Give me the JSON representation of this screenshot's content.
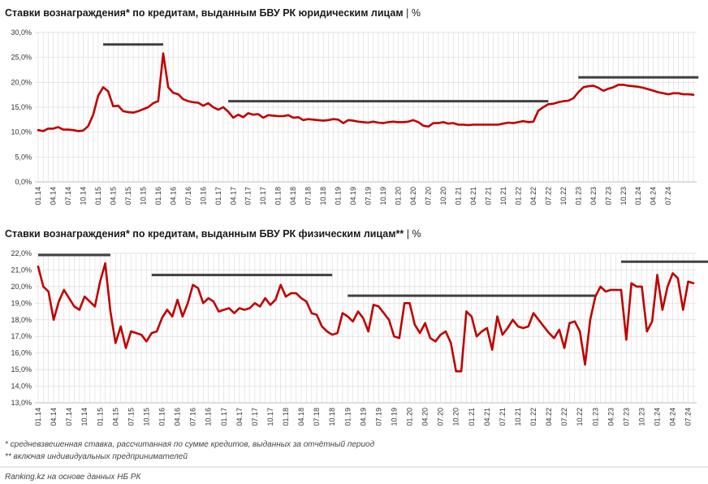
{
  "colors": {
    "series": "#c00000",
    "trend": "#404040",
    "grid": "#d9d9d9",
    "axis": "#bfbfbf"
  },
  "x_labels": [
    "01.14",
    "04.14",
    "07.14",
    "10.14",
    "01.15",
    "04.15",
    "07.15",
    "10.15",
    "01.16",
    "04.16",
    "07.16",
    "10.16",
    "01.17",
    "04.17",
    "07.17",
    "10.17",
    "01.18",
    "04.18",
    "07.18",
    "10.18",
    "01.19",
    "04.19",
    "07.19",
    "10.19",
    "01.20",
    "04.20",
    "07.20",
    "10.20",
    "01.21",
    "04.21",
    "07.21",
    "10.21",
    "01.22",
    "04.22",
    "07.22",
    "10.22",
    "01.23",
    "04.23",
    "07.23",
    "10.23",
    "01.24",
    "04.24",
    "07.24"
  ],
  "chart_data": [
    {
      "type": "line",
      "title": "Ставки вознаграждения* по кредитам, выданным БВУ РК юридическим лицам",
      "unit": "%",
      "title_sep": "|",
      "ylim": [
        0,
        30
      ],
      "y_ticks": [
        "0,0%",
        "5,0%",
        "10,0%",
        "15,0%",
        "20,0%",
        "25,0%",
        "30,0%"
      ],
      "series": [
        {
          "name": "Юридические лица",
          "values": [
            10.4,
            10.2,
            10.7,
            10.7,
            11,
            10.5,
            10.5,
            10.4,
            10.2,
            10.3,
            11.2,
            13.5,
            17.3,
            19,
            18.2,
            15.2,
            15.3,
            14.2,
            14,
            13.9,
            14.2,
            14.6,
            15,
            15.8,
            16.2,
            25.8,
            19,
            17.9,
            17.6,
            16.6,
            16.2,
            16,
            15.9,
            15.3,
            15.8,
            15,
            14.5,
            15,
            14.1,
            12.9,
            13.5,
            13,
            13.8,
            13.5,
            13.6,
            12.9,
            13.4,
            13.3,
            13.2,
            13.2,
            13.4,
            12.9,
            13,
            12.4,
            12.6,
            12.5,
            12.4,
            12.3,
            12.4,
            12.6,
            12.5,
            11.8,
            12.4,
            12.3,
            12.1,
            12,
            11.9,
            12.1,
            11.9,
            11.8,
            12,
            12.1,
            12,
            12,
            12.1,
            12.4,
            12,
            11.3,
            11.1,
            11.8,
            11.8,
            12,
            11.7,
            11.8,
            11.5,
            11.5,
            11.4,
            11.5,
            11.5,
            11.5,
            11.5,
            11.5,
            11.5,
            11.7,
            11.9,
            11.8,
            12,
            12.2,
            12,
            12.1,
            14.3,
            15,
            15.6,
            15.7,
            16,
            16.2,
            16.3,
            16.8,
            18,
            19,
            19.2,
            19.3,
            18.9,
            18.3,
            18.7,
            19,
            19.5,
            19.5,
            19.3,
            19.2,
            19.1,
            18.9,
            18.6,
            18.3,
            18,
            17.8,
            17.6,
            17.8,
            17.8,
            17.6,
            17.6,
            17.5
          ]
        }
      ],
      "trend_segments": [
        {
          "from": 13,
          "to": 25,
          "value": 27.6
        },
        {
          "from": 38,
          "to": 102,
          "value": 16.2
        },
        {
          "from": 108,
          "to": 132,
          "value": 21
        }
      ]
    },
    {
      "type": "line",
      "title": "Ставки вознаграждения* по кредитам, выданным БВУ РК физическим лицам**",
      "unit": "%",
      "title_sep": "|",
      "ylim": [
        13,
        22
      ],
      "y_ticks": [
        "13,0%",
        "14,0%",
        "15,0%",
        "16,0%",
        "17,0%",
        "18,0%",
        "19,0%",
        "20,0%",
        "21,0%",
        "22,0%"
      ],
      "series": [
        {
          "name": "Физические лица",
          "values": [
            21.2,
            20,
            19.7,
            18,
            19.1,
            19.8,
            19.3,
            18.8,
            18.6,
            19.4,
            19.1,
            18.8,
            20.3,
            21.4,
            18.5,
            16.6,
            17.6,
            16.3,
            17.3,
            17.2,
            17.1,
            16.7,
            17.2,
            17.3,
            18.1,
            18.6,
            18.2,
            19.2,
            18.2,
            19,
            20.1,
            19.9,
            19,
            19.3,
            19.1,
            18.5,
            18.6,
            18.7,
            18.4,
            18.7,
            18.6,
            18.7,
            19,
            18.8,
            19.3,
            18.9,
            19.2,
            20.1,
            19.4,
            19.6,
            19.6,
            19.3,
            19.1,
            18.4,
            18.3,
            17.6,
            17.3,
            17.1,
            17.2,
            18.4,
            18.2,
            17.9,
            18.5,
            18.1,
            17.3,
            18.9,
            18.8,
            18.4,
            18,
            17,
            16.9,
            19,
            19,
            17.7,
            17.2,
            17.8,
            16.9,
            16.7,
            17.1,
            17.3,
            16.6,
            14.9,
            14.9,
            18.5,
            18.2,
            17,
            17.3,
            17.5,
            16.2,
            18.2,
            17.1,
            17.5,
            18,
            17.6,
            17.5,
            17.6,
            18.4,
            18,
            17.6,
            17.2,
            16.9,
            17.4,
            16.3,
            17.8,
            17.9,
            17.3,
            15.3,
            18,
            19.4,
            20,
            19.7,
            19.8,
            19.8,
            19.8,
            16.8,
            20.2,
            20,
            20,
            17.3,
            17.9,
            20.7,
            18.6,
            20,
            20.8,
            20.5,
            18.6,
            20.3,
            20.2
          ]
        }
      ],
      "trend_segments": [
        {
          "from": 0,
          "to": 14,
          "value": 21.9
        },
        {
          "from": 22,
          "to": 57,
          "value": 20.7
        },
        {
          "from": 60,
          "to": 108,
          "value": 19.45
        },
        {
          "from": 113,
          "to": 132,
          "value": 21.5
        }
      ]
    }
  ],
  "footnotes": {
    "note1": "* средневзвешенная ставка, рассчитанная по сумме кредитов, выданных за отчётный период",
    "note2": "** включая индивидуальных предпринимателей",
    "source": "Ranking.kz на основе данных НБ РК"
  }
}
